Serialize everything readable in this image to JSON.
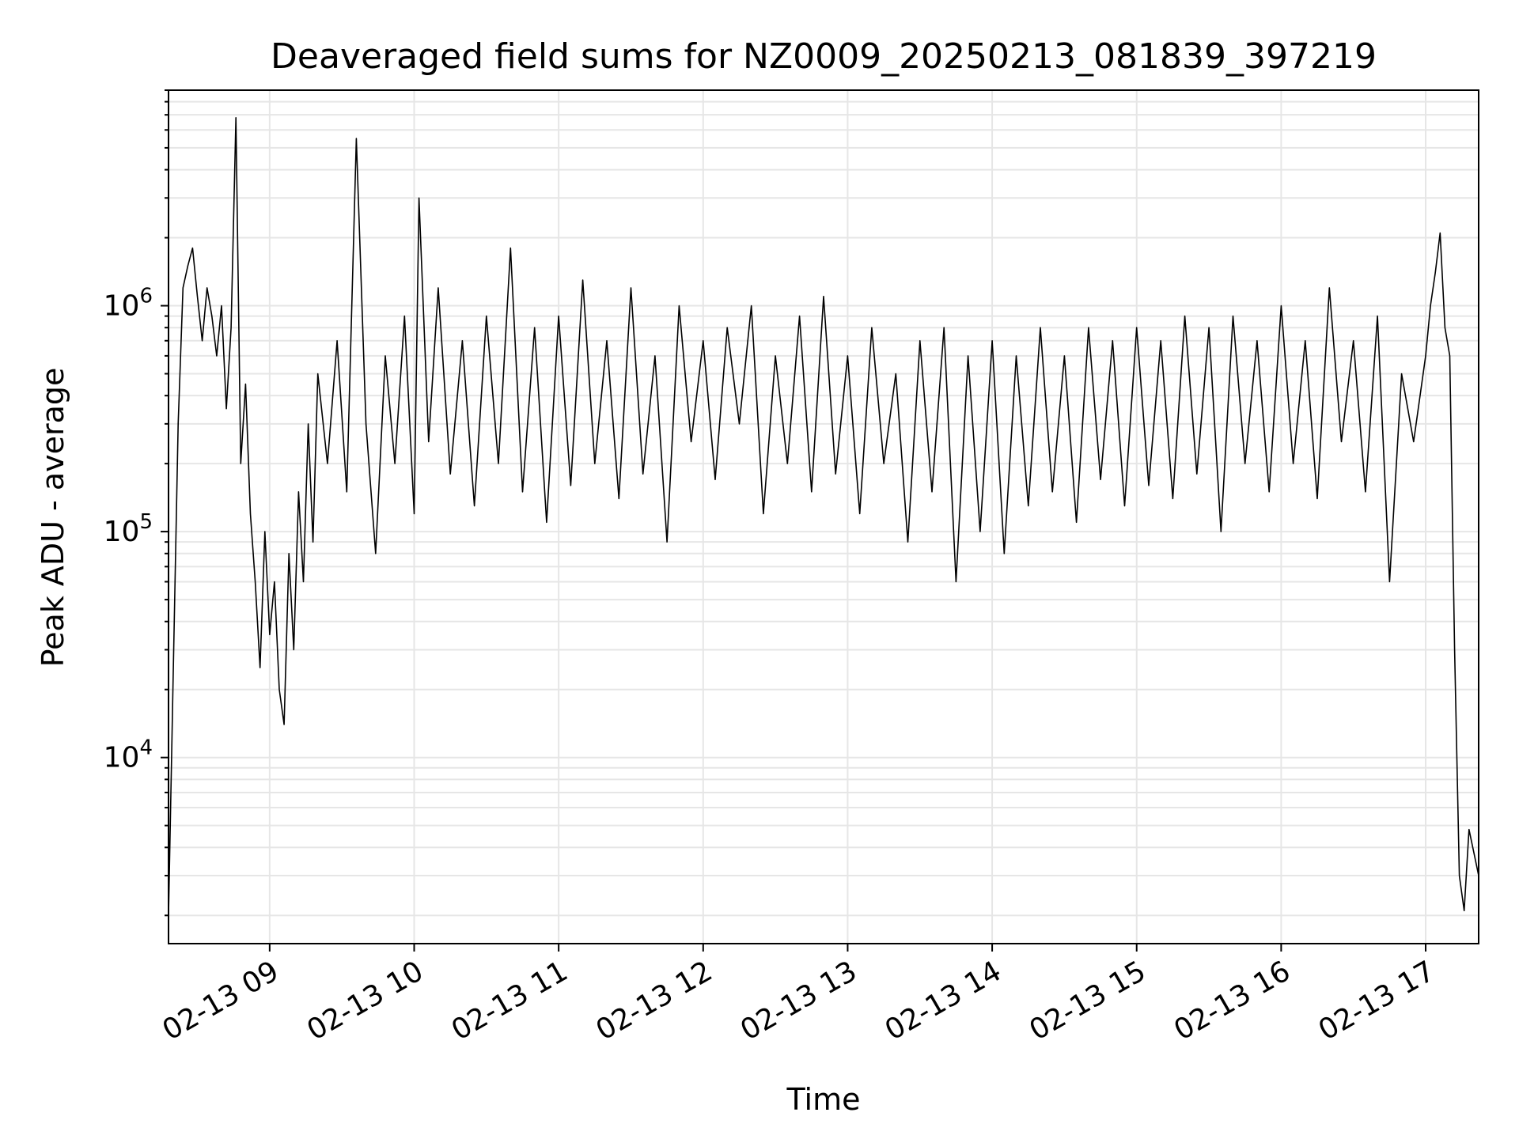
{
  "chart_data": {
    "type": "line",
    "title": "Deaveraged field sums for NZ0009_20250213_081839_397219",
    "xlabel": "Time",
    "ylabel": "Peak ADU - average",
    "yscale": "log",
    "xlim": [
      "02-13 08:18",
      "02-13 17:22"
    ],
    "ylim": [
      1500,
      9000000
    ],
    "grid": true,
    "line_color": "#000000",
    "grid_color": "#e6e6e6",
    "x_ticks": [
      "02-13 09",
      "02-13 10",
      "02-13 11",
      "02-13 12",
      "02-13 13",
      "02-13 14",
      "02-13 15",
      "02-13 16",
      "02-13 17"
    ],
    "y_ticks": [
      {
        "base": "10",
        "exp": "4",
        "value": 10000
      },
      {
        "base": "10",
        "exp": "5",
        "value": 100000
      },
      {
        "base": "10",
        "exp": "6",
        "value": 1000000
      }
    ],
    "series": [
      {
        "values": [
          [
            "02-13 08:18",
            2000
          ],
          [
            "02-13 08:20",
            25000
          ],
          [
            "02-13 08:22",
            300000
          ],
          [
            "02-13 08:24",
            1200000
          ],
          [
            "02-13 08:26",
            1500000
          ],
          [
            "02-13 08:28",
            1800000
          ],
          [
            "02-13 08:30",
            1100000
          ],
          [
            "02-13 08:32",
            700000
          ],
          [
            "02-13 08:34",
            1200000
          ],
          [
            "02-13 08:36",
            900000
          ],
          [
            "02-13 08:38",
            600000
          ],
          [
            "02-13 08:40",
            1000000
          ],
          [
            "02-13 08:42",
            350000
          ],
          [
            "02-13 08:44",
            800000
          ],
          [
            "02-13 08:46",
            6800000
          ],
          [
            "02-13 08:48",
            200000
          ],
          [
            "02-13 08:50",
            450000
          ],
          [
            "02-13 08:52",
            120000
          ],
          [
            "02-13 08:54",
            60000
          ],
          [
            "02-13 08:56",
            25000
          ],
          [
            "02-13 08:58",
            100000
          ],
          [
            "02-13 09:00",
            35000
          ],
          [
            "02-13 09:02",
            60000
          ],
          [
            "02-13 09:04",
            20000
          ],
          [
            "02-13 09:06",
            14000
          ],
          [
            "02-13 09:08",
            80000
          ],
          [
            "02-13 09:10",
            30000
          ],
          [
            "02-13 09:12",
            150000
          ],
          [
            "02-13 09:14",
            60000
          ],
          [
            "02-13 09:16",
            300000
          ],
          [
            "02-13 09:18",
            90000
          ],
          [
            "02-13 09:20",
            500000
          ],
          [
            "02-13 09:24",
            200000
          ],
          [
            "02-13 09:28",
            700000
          ],
          [
            "02-13 09:32",
            150000
          ],
          [
            "02-13 09:36",
            5500000
          ],
          [
            "02-13 09:40",
            300000
          ],
          [
            "02-13 09:44",
            80000
          ],
          [
            "02-13 09:48",
            600000
          ],
          [
            "02-13 09:52",
            200000
          ],
          [
            "02-13 09:56",
            900000
          ],
          [
            "02-13 10:00",
            120000
          ],
          [
            "02-13 10:02",
            3000000
          ],
          [
            "02-13 10:06",
            250000
          ],
          [
            "02-13 10:10",
            1200000
          ],
          [
            "02-13 10:15",
            180000
          ],
          [
            "02-13 10:20",
            700000
          ],
          [
            "02-13 10:25",
            130000
          ],
          [
            "02-13 10:30",
            900000
          ],
          [
            "02-13 10:35",
            200000
          ],
          [
            "02-13 10:40",
            1800000
          ],
          [
            "02-13 10:45",
            150000
          ],
          [
            "02-13 10:50",
            800000
          ],
          [
            "02-13 10:55",
            110000
          ],
          [
            "02-13 11:00",
            900000
          ],
          [
            "02-13 11:05",
            160000
          ],
          [
            "02-13 11:10",
            1300000
          ],
          [
            "02-13 11:15",
            200000
          ],
          [
            "02-13 11:20",
            700000
          ],
          [
            "02-13 11:25",
            140000
          ],
          [
            "02-13 11:30",
            1200000
          ],
          [
            "02-13 11:35",
            180000
          ],
          [
            "02-13 11:40",
            600000
          ],
          [
            "02-13 11:45",
            90000
          ],
          [
            "02-13 11:50",
            1000000
          ],
          [
            "02-13 11:55",
            250000
          ],
          [
            "02-13 12:00",
            700000
          ],
          [
            "02-13 12:05",
            170000
          ],
          [
            "02-13 12:10",
            800000
          ],
          [
            "02-13 12:15",
            300000
          ],
          [
            "02-13 12:20",
            1000000
          ],
          [
            "02-13 12:25",
            120000
          ],
          [
            "02-13 12:30",
            600000
          ],
          [
            "02-13 12:35",
            200000
          ],
          [
            "02-13 12:40",
            900000
          ],
          [
            "02-13 12:45",
            150000
          ],
          [
            "02-13 12:50",
            1100000
          ],
          [
            "02-13 12:55",
            180000
          ],
          [
            "02-13 13:00",
            600000
          ],
          [
            "02-13 13:05",
            120000
          ],
          [
            "02-13 13:10",
            800000
          ],
          [
            "02-13 13:15",
            200000
          ],
          [
            "02-13 13:20",
            500000
          ],
          [
            "02-13 13:25",
            90000
          ],
          [
            "02-13 13:30",
            700000
          ],
          [
            "02-13 13:35",
            150000
          ],
          [
            "02-13 13:40",
            800000
          ],
          [
            "02-13 13:45",
            60000
          ],
          [
            "02-13 13:50",
            600000
          ],
          [
            "02-13 13:55",
            100000
          ],
          [
            "02-13 14:00",
            700000
          ],
          [
            "02-13 14:05",
            80000
          ],
          [
            "02-13 14:10",
            600000
          ],
          [
            "02-13 14:15",
            130000
          ],
          [
            "02-13 14:20",
            800000
          ],
          [
            "02-13 14:25",
            150000
          ],
          [
            "02-13 14:30",
            600000
          ],
          [
            "02-13 14:35",
            110000
          ],
          [
            "02-13 14:40",
            800000
          ],
          [
            "02-13 14:45",
            170000
          ],
          [
            "02-13 14:50",
            700000
          ],
          [
            "02-13 14:55",
            130000
          ],
          [
            "02-13 15:00",
            800000
          ],
          [
            "02-13 15:05",
            160000
          ],
          [
            "02-13 15:10",
            700000
          ],
          [
            "02-13 15:15",
            140000
          ],
          [
            "02-13 15:20",
            900000
          ],
          [
            "02-13 15:25",
            180000
          ],
          [
            "02-13 15:30",
            800000
          ],
          [
            "02-13 15:35",
            100000
          ],
          [
            "02-13 15:40",
            900000
          ],
          [
            "02-13 15:45",
            200000
          ],
          [
            "02-13 15:50",
            700000
          ],
          [
            "02-13 15:55",
            150000
          ],
          [
            "02-13 16:00",
            1000000
          ],
          [
            "02-13 16:05",
            200000
          ],
          [
            "02-13 16:10",
            700000
          ],
          [
            "02-13 16:15",
            140000
          ],
          [
            "02-13 16:20",
            1200000
          ],
          [
            "02-13 16:25",
            250000
          ],
          [
            "02-13 16:30",
            700000
          ],
          [
            "02-13 16:35",
            150000
          ],
          [
            "02-13 16:40",
            900000
          ],
          [
            "02-13 16:45",
            60000
          ],
          [
            "02-13 16:50",
            500000
          ],
          [
            "02-13 16:55",
            250000
          ],
          [
            "02-13 17:00",
            600000
          ],
          [
            "02-13 17:02",
            1000000
          ],
          [
            "02-13 17:04",
            1400000
          ],
          [
            "02-13 17:06",
            2100000
          ],
          [
            "02-13 17:08",
            800000
          ],
          [
            "02-13 17:10",
            600000
          ],
          [
            "02-13 17:12",
            30000
          ],
          [
            "02-13 17:14",
            3000
          ],
          [
            "02-13 17:16",
            2100
          ],
          [
            "02-13 17:18",
            4800
          ],
          [
            "02-13 17:20",
            3800
          ],
          [
            "02-13 17:22",
            3000
          ]
        ]
      }
    ]
  }
}
